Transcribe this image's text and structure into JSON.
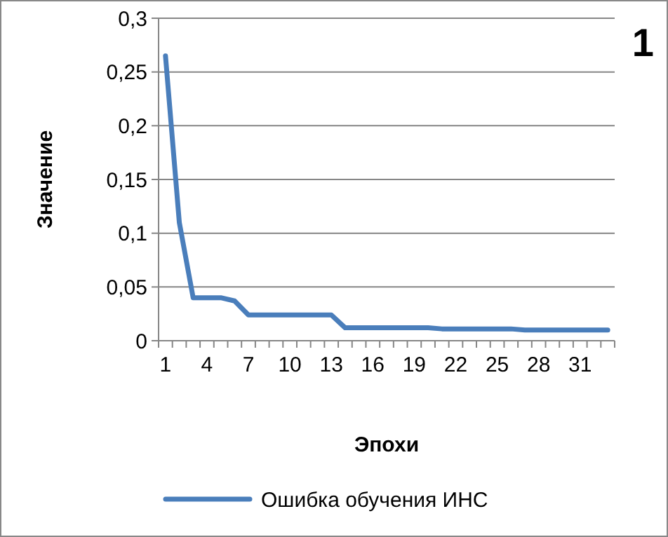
{
  "chart_data": {
    "type": "line",
    "xlabel": "Эпохи",
    "ylabel": "Значение",
    "annotations": [
      "1"
    ],
    "categories": [
      "1",
      null,
      null,
      "4",
      null,
      null,
      "7",
      null,
      null,
      "10",
      null,
      null,
      "13",
      null,
      null,
      "16",
      null,
      null,
      "19",
      null,
      null,
      "22",
      null,
      null,
      "25",
      null,
      null,
      "28",
      null,
      null,
      "31",
      null,
      null
    ],
    "series": [
      {
        "name": "Ошибка обучения ИНС",
        "color": "#4a7ebb",
        "values": [
          0.265,
          0.11,
          0.04,
          0.04,
          0.04,
          0.037,
          0.024,
          0.024,
          0.024,
          0.024,
          0.024,
          0.024,
          0.024,
          0.012,
          0.012,
          0.012,
          0.012,
          0.012,
          0.012,
          0.012,
          0.011,
          0.011,
          0.011,
          0.011,
          0.011,
          0.011,
          0.01,
          0.01,
          0.01,
          0.01,
          0.01,
          0.01,
          0.01
        ]
      }
    ],
    "ylim": [
      0,
      0.3
    ],
    "yticks": [
      0,
      {
        "value": 0.05,
        "label": "0,05"
      },
      {
        "value": 0.1,
        "label": "0,1"
      },
      {
        "value": 0.15,
        "label": "0,15"
      },
      {
        "value": 0.2,
        "label": "0,2"
      },
      {
        "value": 0.25,
        "label": "0,25"
      },
      {
        "value": 0.3,
        "label": "0,3"
      }
    ],
    "grid": "y",
    "legend": "bottom",
    "marker": "none",
    "line_style": "solid"
  }
}
